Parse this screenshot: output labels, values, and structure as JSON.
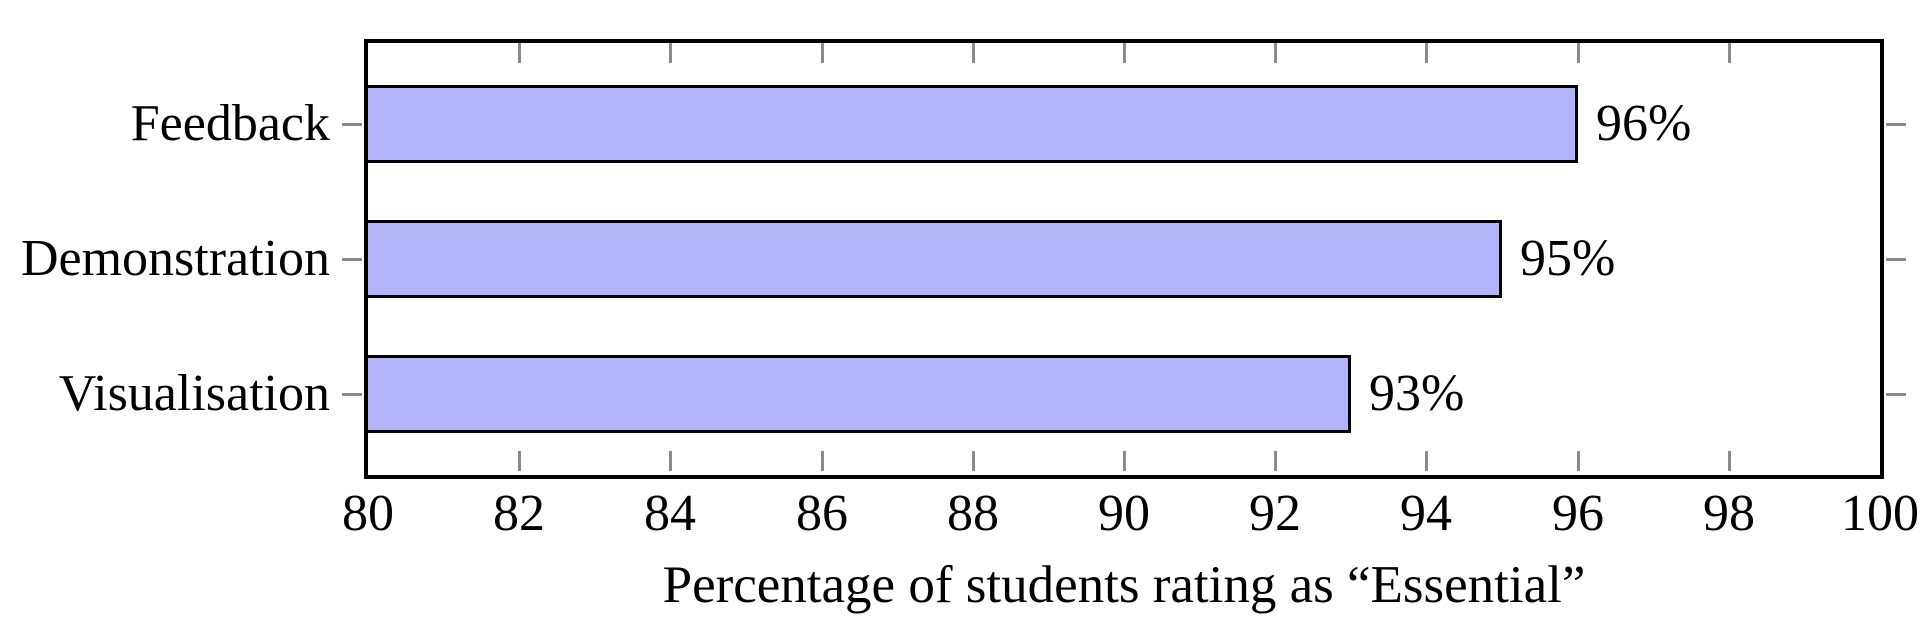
{
  "chart_data": {
    "type": "bar",
    "orientation": "horizontal",
    "title": "",
    "xlabel": "Percentage of students rating as “Essential”",
    "ylabel": "",
    "categories": [
      "Feedback",
      "Demonstration",
      "Visualisation"
    ],
    "values": [
      96,
      95,
      93
    ],
    "value_labels": [
      "96%",
      "95%",
      "93%"
    ],
    "xlim": [
      80,
      100
    ],
    "xticks": [
      80,
      82,
      84,
      86,
      88,
      90,
      92,
      94,
      96,
      98,
      100
    ],
    "grid": "off",
    "legend": "none",
    "colors": {
      "bar_fill": "#b3b3fa",
      "bar_border": "#000000",
      "axis_border": "#000000",
      "tick_mark": "#8a8a8a",
      "text": "#000000",
      "background": "#ffffff"
    }
  }
}
